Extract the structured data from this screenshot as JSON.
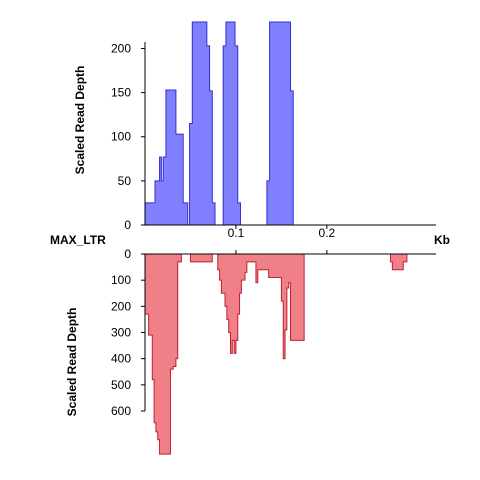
{
  "chart_data": {
    "type": "area",
    "sequence_label": "MAX_LTR",
    "x_unit_label": "Kb",
    "x_ticks": [
      0.1,
      0.2
    ],
    "xlim": [
      0,
      0.32
    ],
    "colors": {
      "top_fill": "#8080ff",
      "top_stroke": "#3030d0",
      "bottom_fill": "#f08088",
      "bottom_stroke": "#c02030"
    },
    "top": {
      "ylabel": "Scaled Read Depth",
      "ylim": [
        0,
        230
      ],
      "y_ticks": [
        0,
        50,
        100,
        150,
        200
      ],
      "profile": [
        [
          0.0,
          25
        ],
        [
          0.011,
          25
        ],
        [
          0.011,
          50
        ],
        [
          0.016,
          50
        ],
        [
          0.016,
          77
        ],
        [
          0.018,
          77
        ],
        [
          0.018,
          50
        ],
        [
          0.02,
          50
        ],
        [
          0.02,
          77
        ],
        [
          0.023,
          77
        ],
        [
          0.023,
          153
        ],
        [
          0.034,
          153
        ],
        [
          0.034,
          103
        ],
        [
          0.042,
          103
        ],
        [
          0.042,
          25
        ],
        [
          0.047,
          25
        ],
        [
          0.047,
          0
        ],
        [
          0.049,
          0
        ],
        [
          0.049,
          115
        ],
        [
          0.052,
          115
        ],
        [
          0.052,
          230
        ],
        [
          0.068,
          230
        ],
        [
          0.068,
          203
        ],
        [
          0.071,
          203
        ],
        [
          0.071,
          152
        ],
        [
          0.074,
          152
        ],
        [
          0.074,
          25
        ],
        [
          0.077,
          25
        ],
        [
          0.077,
          0
        ],
        [
          0.084,
          0
        ],
        [
          0.084,
          0
        ],
        [
          0.086,
          0
        ],
        [
          0.086,
          203
        ],
        [
          0.089,
          203
        ],
        [
          0.089,
          230
        ],
        [
          0.099,
          230
        ],
        [
          0.099,
          203
        ],
        [
          0.102,
          203
        ],
        [
          0.102,
          25
        ],
        [
          0.105,
          25
        ],
        [
          0.105,
          0
        ],
        [
          0.118,
          0
        ],
        [
          0.118,
          0
        ],
        [
          0.134,
          0
        ],
        [
          0.134,
          50
        ],
        [
          0.137,
          50
        ],
        [
          0.137,
          230
        ],
        [
          0.16,
          230
        ],
        [
          0.16,
          152
        ],
        [
          0.163,
          152
        ],
        [
          0.163,
          0
        ],
        [
          0.32,
          0
        ]
      ]
    },
    "bottom": {
      "ylabel": "Scaled Read Depth",
      "ylim": [
        0,
        600
      ],
      "y_ticks": [
        0,
        100,
        200,
        300,
        400,
        500,
        600
      ],
      "profile": [
        [
          0.0,
          230
        ],
        [
          0.004,
          230
        ],
        [
          0.004,
          310
        ],
        [
          0.008,
          310
        ],
        [
          0.008,
          480
        ],
        [
          0.01,
          480
        ],
        [
          0.01,
          645
        ],
        [
          0.012,
          645
        ],
        [
          0.012,
          680
        ],
        [
          0.014,
          680
        ],
        [
          0.014,
          710
        ],
        [
          0.016,
          710
        ],
        [
          0.016,
          765
        ],
        [
          0.028,
          765
        ],
        [
          0.028,
          440
        ],
        [
          0.031,
          440
        ],
        [
          0.031,
          430
        ],
        [
          0.034,
          430
        ],
        [
          0.034,
          400
        ],
        [
          0.036,
          400
        ],
        [
          0.036,
          30
        ],
        [
          0.04,
          30
        ],
        [
          0.04,
          0
        ],
        [
          0.05,
          0
        ],
        [
          0.05,
          30
        ],
        [
          0.074,
          30
        ],
        [
          0.074,
          0
        ],
        [
          0.08,
          0
        ],
        [
          0.08,
          60
        ],
        [
          0.082,
          60
        ],
        [
          0.082,
          100
        ],
        [
          0.084,
          100
        ],
        [
          0.084,
          150
        ],
        [
          0.088,
          150
        ],
        [
          0.088,
          200
        ],
        [
          0.09,
          200
        ],
        [
          0.09,
          250
        ],
        [
          0.092,
          250
        ],
        [
          0.092,
          300
        ],
        [
          0.094,
          300
        ],
        [
          0.094,
          380
        ],
        [
          0.096,
          380
        ],
        [
          0.096,
          330
        ],
        [
          0.098,
          330
        ],
        [
          0.098,
          380
        ],
        [
          0.1,
          380
        ],
        [
          0.1,
          330
        ],
        [
          0.102,
          330
        ],
        [
          0.102,
          230
        ],
        [
          0.104,
          230
        ],
        [
          0.104,
          150
        ],
        [
          0.106,
          150
        ],
        [
          0.106,
          100
        ],
        [
          0.11,
          100
        ],
        [
          0.11,
          70
        ],
        [
          0.112,
          70
        ],
        [
          0.112,
          30
        ],
        [
          0.122,
          30
        ],
        [
          0.122,
          110
        ],
        [
          0.124,
          110
        ],
        [
          0.124,
          60
        ],
        [
          0.136,
          60
        ],
        [
          0.136,
          90
        ],
        [
          0.15,
          90
        ],
        [
          0.15,
          180
        ],
        [
          0.152,
          180
        ],
        [
          0.152,
          400
        ],
        [
          0.154,
          400
        ],
        [
          0.154,
          290
        ],
        [
          0.156,
          290
        ],
        [
          0.156,
          130
        ],
        [
          0.158,
          130
        ],
        [
          0.158,
          110
        ],
        [
          0.16,
          110
        ],
        [
          0.16,
          330
        ],
        [
          0.175,
          330
        ],
        [
          0.175,
          0
        ],
        [
          0.27,
          0
        ],
        [
          0.27,
          30
        ],
        [
          0.272,
          30
        ],
        [
          0.272,
          60
        ],
        [
          0.284,
          60
        ],
        [
          0.284,
          30
        ],
        [
          0.288,
          30
        ],
        [
          0.288,
          0
        ],
        [
          0.32,
          0
        ]
      ]
    }
  }
}
